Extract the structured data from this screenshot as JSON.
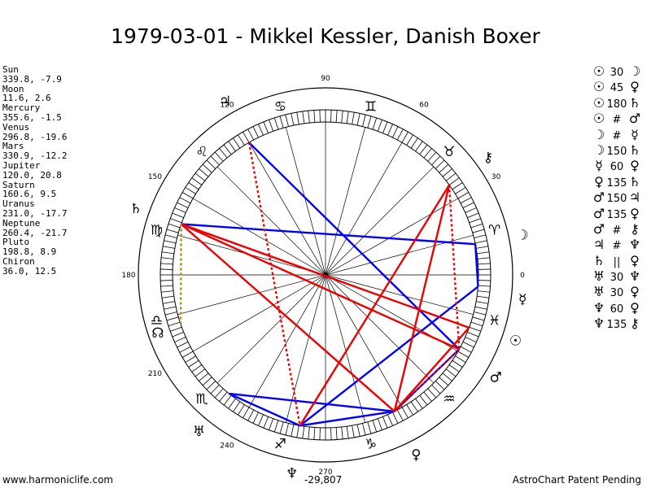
{
  "title": "1979-03-01 - Mikkel Kessler, Danish Boxer",
  "planets": [
    {
      "name": "Sun",
      "coords": "339.8, -7.9",
      "glyph": "☉",
      "lon": 339.8
    },
    {
      "name": "Moon",
      "coords": "11.6, 2.6",
      "glyph": "☽",
      "lon": 11.6
    },
    {
      "name": "Mercury",
      "coords": "355.6, -1.5",
      "glyph": "☿",
      "lon": 355.6
    },
    {
      "name": "Venus",
      "coords": "296.8, -19.6",
      "glyph": "♀",
      "lon": 296.8
    },
    {
      "name": "Mars",
      "coords": "330.9, -12.2",
      "glyph": "♂",
      "lon": 330.9
    },
    {
      "name": "Jupiter",
      "coords": "120.0, 20.8",
      "glyph": "♃",
      "lon": 120.0
    },
    {
      "name": "Saturn",
      "coords": "160.6, 9.5",
      "glyph": "♄",
      "lon": 160.6
    },
    {
      "name": "Uranus",
      "coords": "231.0, -17.7",
      "glyph": "♅",
      "lon": 231.0
    },
    {
      "name": "Neptune",
      "coords": "260.4, -21.7",
      "glyph": "♆",
      "lon": 260.4
    },
    {
      "name": "Pluto",
      "coords": "198.8, 8.9",
      "glyph": "♇",
      "lon": 198.8
    },
    {
      "name": "Chiron",
      "coords": "36.0, 12.5",
      "glyph": "⚷",
      "lon": 36.0
    }
  ],
  "signs": [
    "♈",
    "♉",
    "♊",
    "♋",
    "♌",
    "♍",
    "♎",
    "♏",
    "♐",
    "♑",
    "♒",
    "♓"
  ],
  "extra_glyphs": {
    "node": "☊"
  },
  "degree_labels": [
    "0",
    "30",
    "60",
    "90",
    "120",
    "150",
    "180",
    "210",
    "240",
    "270"
  ],
  "aspects": [
    {
      "p1": "☉",
      "sym": "30",
      "p2": "☽"
    },
    {
      "p1": "☉",
      "sym": "45",
      "p2": "♀"
    },
    {
      "p1": "☉",
      "sym": "180",
      "p2": "♄"
    },
    {
      "p1": "☉",
      "sym": "#",
      "p2": "♂"
    },
    {
      "p1": "☽",
      "sym": "#",
      "p2": "☿"
    },
    {
      "p1": "☽",
      "sym": "150",
      "p2": "♄"
    },
    {
      "p1": "☿",
      "sym": "60",
      "p2": "♀"
    },
    {
      "p1": "♀",
      "sym": "135",
      "p2": "♄"
    },
    {
      "p1": "♂",
      "sym": "150",
      "p2": "♃"
    },
    {
      "p1": "♂",
      "sym": "135",
      "p2": "♀"
    },
    {
      "p1": "♂",
      "sym": "#",
      "p2": "⚷"
    },
    {
      "p1": "♃",
      "sym": "#",
      "p2": "♆"
    },
    {
      "p1": "♄",
      "sym": "||",
      "p2": "♀"
    },
    {
      "p1": "♅",
      "sym": "30",
      "p2": "♆"
    },
    {
      "p1": "♅",
      "sym": "30",
      "p2": "♀"
    },
    {
      "p1": "♆",
      "sym": "60",
      "p2": "♀"
    },
    {
      "p1": "♆",
      "sym": "135",
      "p2": "⚷"
    }
  ],
  "center_label": "-29,807",
  "footer_left": "www.harmoniclife.com",
  "footer_right": "AstroChart Patent Pending",
  "colors": {
    "blue": "#0000ff",
    "red": "#ee0000",
    "gold": "#b8860b"
  }
}
